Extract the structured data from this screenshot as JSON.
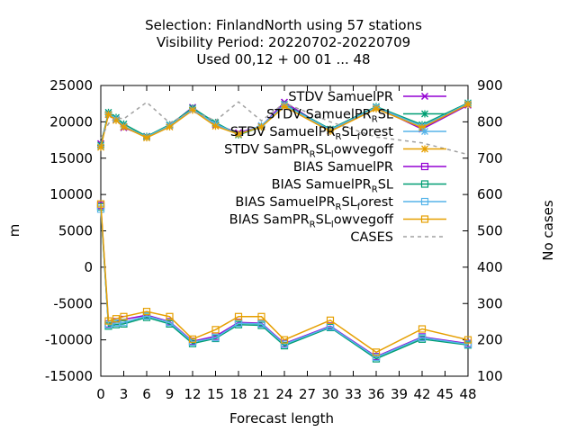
{
  "chart_data": {
    "type": "line",
    "title_lines": [
      "Selection: FinlandNorth using    57 stations",
      "Visibility   Period: 20220702-20220709",
      "Used  00,12  + 00 01 ... 48"
    ],
    "xlabel": "Forecast length",
    "ylabel": "m",
    "y2label": "No cases",
    "xlim": [
      0,
      48
    ],
    "ylim": [
      -15000,
      25000
    ],
    "y2lim": [
      100,
      900
    ],
    "x_ticks": [
      0,
      3,
      6,
      9,
      12,
      15,
      18,
      21,
      24,
      27,
      30,
      33,
      36,
      39,
      42,
      45,
      48
    ],
    "y_ticks": [
      -15000,
      -10000,
      -5000,
      0,
      5000,
      10000,
      15000,
      20000,
      25000
    ],
    "y2_ticks": [
      100,
      200,
      300,
      400,
      500,
      600,
      700,
      800,
      900
    ],
    "grid": false,
    "legend_position": "top-right",
    "x": [
      0,
      1,
      2,
      3,
      6,
      9,
      12,
      15,
      18,
      21,
      24,
      30,
      36,
      42,
      48
    ],
    "series": [
      {
        "name": "STDV SamuelPR",
        "legend": [
          {
            "t": "STDV SamuelPR"
          }
        ],
        "color": "#9400d3",
        "marker": "x",
        "values": [
          17000,
          21000,
          20300,
          19200,
          18000,
          19500,
          22000,
          19600,
          18500,
          19400,
          22700,
          18800,
          22000,
          19000,
          22300
        ]
      },
      {
        "name": "STDV SamuelPR_RSL",
        "legend": [
          {
            "t": "STDV SamuelPR"
          },
          {
            "t": "R",
            "sub": true
          },
          {
            "t": "SL"
          }
        ],
        "color": "#009e73",
        "marker": "star",
        "values": [
          16800,
          21300,
          20600,
          19700,
          18000,
          19600,
          21900,
          19900,
          18200,
          19300,
          22400,
          19000,
          22100,
          19600,
          22600
        ]
      },
      {
        "name": "STDV SamuelPR_RSL_forest",
        "legend": [
          {
            "t": "STDV SamuelPR"
          },
          {
            "t": "R",
            "sub": true
          },
          {
            "t": "SL"
          },
          {
            "t": "f",
            "sub": true
          },
          {
            "t": "orest"
          }
        ],
        "color": "#56b4e9",
        "marker": "star",
        "values": [
          16600,
          21100,
          20400,
          19400,
          17900,
          19500,
          21700,
          19700,
          18300,
          19500,
          22300,
          18900,
          22000,
          19400,
          22500
        ]
      },
      {
        "name": "STDV SamPR_RSL_lowvegoff",
        "legend": [
          {
            "t": "STDV SamPR"
          },
          {
            "t": "R",
            "sub": true
          },
          {
            "t": "SL"
          },
          {
            "t": "l",
            "sub": true
          },
          {
            "t": "owvegoff"
          }
        ],
        "color": "#e69f00",
        "marker": "star",
        "values": [
          16500,
          21000,
          20200,
          19300,
          17800,
          19300,
          21600,
          19400,
          18300,
          19300,
          22100,
          18700,
          21800,
          19200,
          22400
        ]
      },
      {
        "name": "BIAS SamuelPR",
        "legend": [
          {
            "t": "BIAS SamuelPR"
          }
        ],
        "color": "#9400d3",
        "marker": "square",
        "values": [
          8500,
          -7800,
          -7500,
          -7200,
          -6600,
          -7500,
          -10200,
          -9500,
          -7600,
          -7700,
          -10500,
          -8100,
          -12300,
          -9600,
          -10500
        ]
      },
      {
        "name": "BIAS SamuelPR_RSL",
        "legend": [
          {
            "t": "BIAS SamuelPR"
          },
          {
            "t": "R",
            "sub": true
          },
          {
            "t": "SL"
          }
        ],
        "color": "#009e73",
        "marker": "square",
        "values": [
          8300,
          -8100,
          -7900,
          -7800,
          -6900,
          -7800,
          -10500,
          -9800,
          -7900,
          -8000,
          -10800,
          -8300,
          -12600,
          -9900,
          -10700
        ]
      },
      {
        "name": "BIAS SamuelPR_RSL_forest",
        "legend": [
          {
            "t": "BIAS SamuelPR"
          },
          {
            "t": "R",
            "sub": true
          },
          {
            "t": "SL"
          },
          {
            "t": "f",
            "sub": true
          },
          {
            "t": "orest"
          }
        ],
        "color": "#56b4e9",
        "marker": "square",
        "values": [
          8000,
          -7900,
          -7700,
          -7600,
          -6700,
          -7600,
          -10300,
          -9700,
          -7700,
          -7800,
          -10600,
          -8200,
          -12400,
          -9700,
          -10600
        ]
      },
      {
        "name": "BIAS SamPR_RSL_lowvegoff",
        "legend": [
          {
            "t": "BIAS SamPR"
          },
          {
            "t": "R",
            "sub": true
          },
          {
            "t": "SL"
          },
          {
            "t": "l",
            "sub": true
          },
          {
            "t": "owvegoff"
          }
        ],
        "color": "#e69f00",
        "marker": "square",
        "values": [
          8700,
          -7400,
          -7100,
          -6800,
          -6100,
          -6800,
          -9900,
          -8600,
          -6800,
          -6800,
          -10000,
          -7300,
          -11700,
          -8500,
          -10000
        ]
      }
    ],
    "cases": {
      "name": "CASES",
      "legend": [
        {
          "t": "CASES"
        }
      ],
      "color": "#a0a0a0",
      "axis": "y2",
      "values": [
        754,
        795,
        812,
        808,
        854,
        797,
        830,
        803,
        855,
        803,
        852,
        800,
        758,
        742,
        710
      ]
    }
  }
}
